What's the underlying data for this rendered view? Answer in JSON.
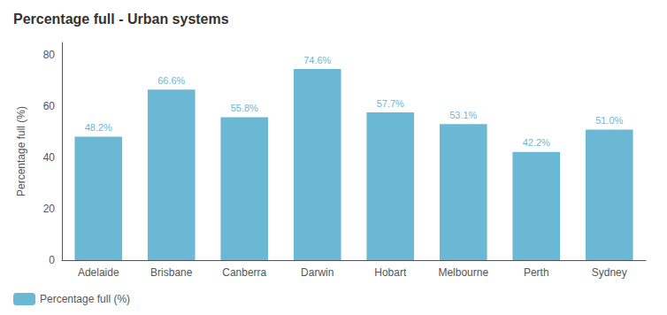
{
  "chart_data": {
    "type": "bar",
    "title": "Percentage full - Urban systems",
    "categories": [
      "Adelaide",
      "Brisbane",
      "Canberra",
      "Darwin",
      "Hobart",
      "Melbourne",
      "Perth",
      "Sydney"
    ],
    "series": [
      {
        "name": "Percentage full (%)",
        "color": "#6bb8d4",
        "values": [
          48.2,
          66.6,
          55.8,
          74.6,
          57.7,
          53.1,
          42.2,
          51.0
        ],
        "value_labels": [
          "48.2%",
          "66.6%",
          "55.8%",
          "74.6%",
          "57.7%",
          "53.1%",
          "42.2%",
          "51.0%"
        ]
      }
    ],
    "ylabel": "Percentage full (%)",
    "ylim": [
      0,
      85
    ],
    "yticks": [
      0,
      20,
      40,
      60,
      80
    ],
    "grid": false,
    "legend": "lower left",
    "data_labels": true
  }
}
